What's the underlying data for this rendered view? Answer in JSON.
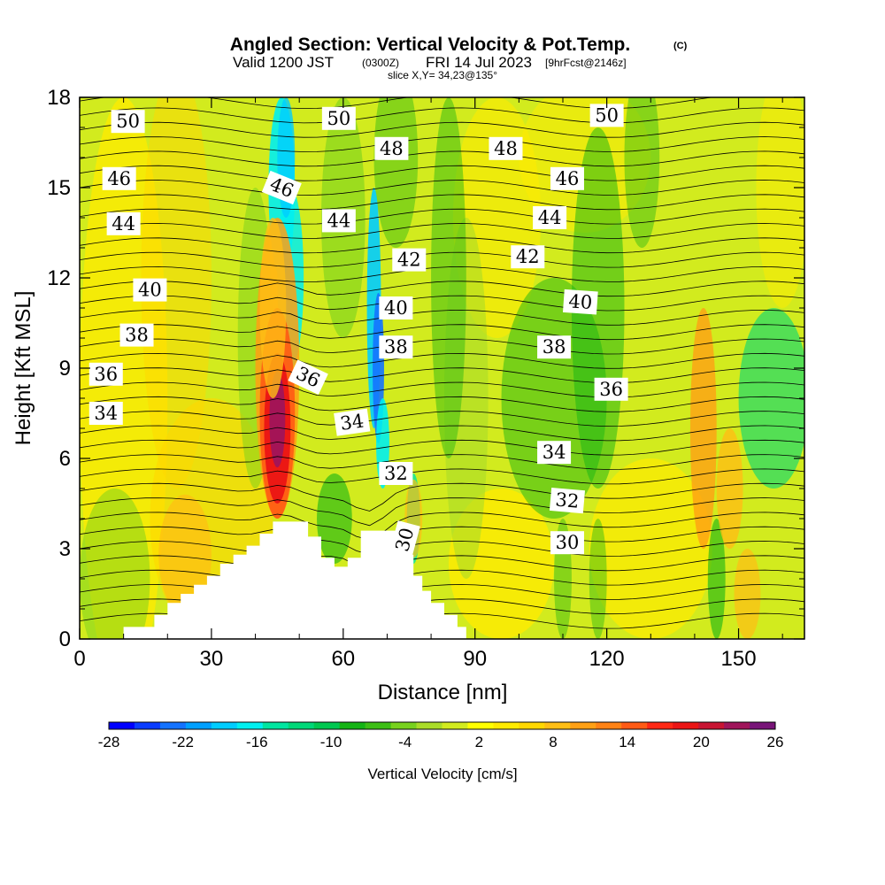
{
  "title": {
    "main": "Angled Section: Vertical Velocity & Pot.Temp.",
    "main_suffix": "(C)",
    "valid_prefix": "Valid 1200 JST",
    "valid_utc": "(0300Z)",
    "valid_date": "FRI 14 Jul 2023",
    "valid_fcst": "[9hrFcst@2146z]",
    "slice": "slice X,Y= 34,23@135°"
  },
  "colors": {
    "terrain": "#ffffff",
    "contour": "#000000",
    "label_bg": "#ffffff"
  },
  "chart_data": {
    "type": "heatmap",
    "xlabel": "Distance [nm]",
    "ylabel": "Height [Kft MSL]",
    "xlim": [
      0,
      165
    ],
    "ylim": [
      0,
      18
    ],
    "x_ticks": [
      "0",
      "30",
      "60",
      "90",
      "120",
      "150"
    ],
    "y_ticks": [
      "0",
      "3",
      "6",
      "9",
      "12",
      "15",
      "18"
    ],
    "colorbar": {
      "label": "Vertical Velocity [cm/s]",
      "tick_labels": [
        "-28",
        "-22",
        "-16",
        "-10",
        "-4",
        "2",
        "8",
        "14",
        "20",
        "26"
      ],
      "colors": [
        "#0000ff",
        "#0a3cff",
        "#1473ff",
        "#00a0ff",
        "#00cdff",
        "#00f0f0",
        "#00e6a0",
        "#00d778",
        "#00c850",
        "#14b414",
        "#3cbe14",
        "#78d21e",
        "#aadc28",
        "#d2eb1e",
        "#ffff00",
        "#ffeb00",
        "#ffd700",
        "#ffbe14",
        "#ffa014",
        "#ff8214",
        "#ff5a14",
        "#ff2814",
        "#eb1414",
        "#c81432",
        "#a0145a",
        "#781478"
      ]
    },
    "potential_temperature_labels": [
      {
        "value": "50",
        "x": 11,
        "y": 17.2,
        "angle": 0
      },
      {
        "value": "50",
        "x": 59,
        "y": 17.3,
        "angle": 0
      },
      {
        "value": "50",
        "x": 120,
        "y": 17.4,
        "angle": 0
      },
      {
        "value": "48",
        "x": 71,
        "y": 16.3,
        "angle": 0
      },
      {
        "value": "48",
        "x": 97,
        "y": 16.3,
        "angle": 0
      },
      {
        "value": "46",
        "x": 9,
        "y": 15.3,
        "angle": 0
      },
      {
        "value": "46",
        "x": 46,
        "y": 15.0,
        "angle": 22
      },
      {
        "value": "46",
        "x": 111,
        "y": 15.3,
        "angle": 0
      },
      {
        "value": "44",
        "x": 10,
        "y": 13.8,
        "angle": 0
      },
      {
        "value": "44",
        "x": 59,
        "y": 13.9,
        "angle": 0
      },
      {
        "value": "44",
        "x": 107,
        "y": 14.0,
        "angle": 0
      },
      {
        "value": "42",
        "x": 75,
        "y": 12.6,
        "angle": 0
      },
      {
        "value": "42",
        "x": 102,
        "y": 12.7,
        "angle": 0
      },
      {
        "value": "40",
        "x": 16,
        "y": 11.6,
        "angle": 0
      },
      {
        "value": "40",
        "x": 72,
        "y": 11.0,
        "angle": 0
      },
      {
        "value": "40",
        "x": 114,
        "y": 11.2,
        "angle": 4
      },
      {
        "value": "38",
        "x": 13,
        "y": 10.1,
        "angle": 0
      },
      {
        "value": "38",
        "x": 72,
        "y": 9.7,
        "angle": 0
      },
      {
        "value": "38",
        "x": 108,
        "y": 9.7,
        "angle": 0
      },
      {
        "value": "36",
        "x": 6,
        "y": 8.8,
        "angle": 0
      },
      {
        "value": "36",
        "x": 52,
        "y": 8.7,
        "angle": 25
      },
      {
        "value": "36",
        "x": 121,
        "y": 8.3,
        "angle": 0
      },
      {
        "value": "34",
        "x": 6,
        "y": 7.5,
        "angle": 0
      },
      {
        "value": "34",
        "x": 62,
        "y": 7.2,
        "angle": -8
      },
      {
        "value": "34",
        "x": 108,
        "y": 6.2,
        "angle": 0
      },
      {
        "value": "32",
        "x": 72,
        "y": 5.5,
        "angle": 0
      },
      {
        "value": "32",
        "x": 111,
        "y": 4.6,
        "angle": 5
      },
      {
        "value": "30",
        "x": 74,
        "y": 3.3,
        "angle": -75
      },
      {
        "value": "30",
        "x": 111,
        "y": 3.2,
        "angle": 0
      }
    ]
  }
}
